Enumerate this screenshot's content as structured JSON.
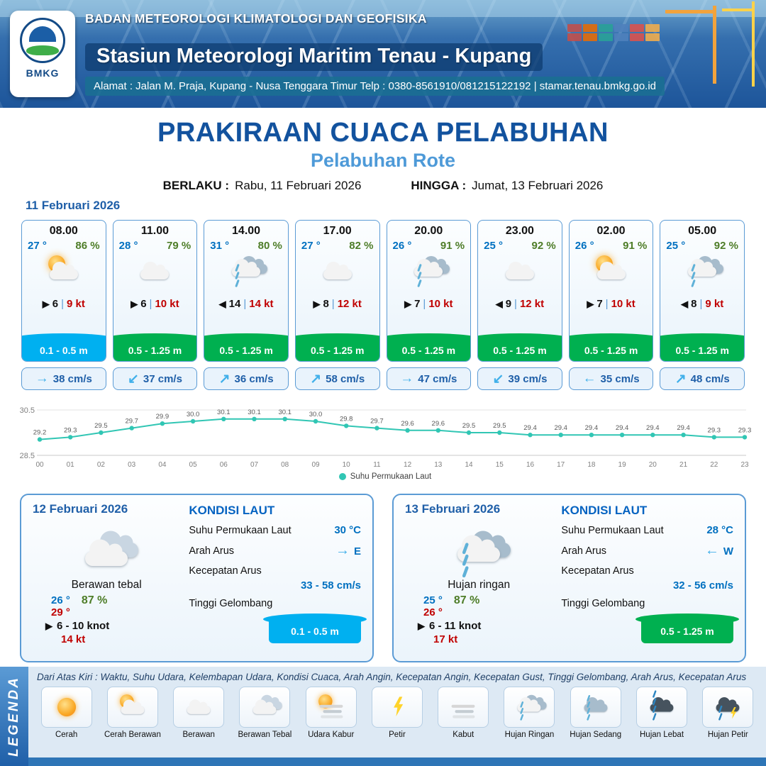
{
  "header": {
    "logo_text": "BMKG",
    "agency": "BADAN METEOROLOGI KLIMATOLOGI DAN GEOFISIKA",
    "station": "Stasiun Meteorologi Maritim Tenau - Kupang",
    "address": "Alamat : Jalan M. Praja, Kupang - Nusa Tenggara Timur Telp : 0380-8561910/081215122192  | stamar.tenau.bmkg.go.id"
  },
  "title": {
    "main": "PRAKIRAAN CUACA PELABUHAN",
    "subtitle": "Pelabuhan Rote",
    "berlaku_label": "BERLAKU :",
    "berlaku_value": "Rabu, 11 Februari 2026",
    "hingga_label": "HINGGA :",
    "hingga_value": "Jumat, 13 Februari 2026"
  },
  "ui": {
    "pipe": "|"
  },
  "day1": {
    "date": "11 Februari 2026",
    "hours": [
      {
        "time": "08.00",
        "temp": "27 °",
        "rh": "86 %",
        "icon": "cerah-berawan",
        "wind_arrow": "▶",
        "wind": "6",
        "gust": "9 kt",
        "wave": "0.1 - 0.5 m",
        "wave_type": "low",
        "current_arrow": "→",
        "current": "38 cm/s"
      },
      {
        "time": "11.00",
        "temp": "28 °",
        "rh": "79 %",
        "icon": "berawan",
        "wind_arrow": "▶",
        "wind": "6",
        "gust": "10 kt",
        "wave": "0.5 - 1.25 m",
        "wave_type": "mid",
        "current_arrow": "↙",
        "current": "37 cm/s"
      },
      {
        "time": "14.00",
        "temp": "31 °",
        "rh": "80 %",
        "icon": "hujan-ringan",
        "wind_arrow": "◀",
        "wind": "14",
        "gust": "14 kt",
        "wave": "0.5 - 1.25 m",
        "wave_type": "mid",
        "current_arrow": "↗",
        "current": "36 cm/s"
      },
      {
        "time": "17.00",
        "temp": "27 °",
        "rh": "82 %",
        "icon": "berawan",
        "wind_arrow": "▶",
        "wind": "8",
        "gust": "12 kt",
        "wave": "0.5 - 1.25 m",
        "wave_type": "mid",
        "current_arrow": "↗",
        "current": "58 cm/s"
      },
      {
        "time": "20.00",
        "temp": "26 °",
        "rh": "91 %",
        "icon": "hujan-ringan",
        "wind_arrow": "▶",
        "wind": "7",
        "gust": "10 kt",
        "wave": "0.5 - 1.25 m",
        "wave_type": "mid",
        "current_arrow": "→",
        "current": "47 cm/s"
      },
      {
        "time": "23.00",
        "temp": "25 °",
        "rh": "92 %",
        "icon": "berawan",
        "wind_arrow": "◀",
        "wind": "9",
        "gust": "12 kt",
        "wave": "0.5 - 1.25 m",
        "wave_type": "mid",
        "current_arrow": "↙",
        "current": "39 cm/s"
      },
      {
        "time": "02.00",
        "temp": "26 °",
        "rh": "91 %",
        "icon": "cerah-berawan",
        "wind_arrow": "▶",
        "wind": "7",
        "gust": "10 kt",
        "wave": "0.5 - 1.25 m",
        "wave_type": "mid",
        "current_arrow": "←",
        "current": "35 cm/s"
      },
      {
        "time": "05.00",
        "temp": "25 °",
        "rh": "92 %",
        "icon": "hujan-ringan",
        "wind_arrow": "◀",
        "wind": "8",
        "gust": "9 kt",
        "wave": "0.5 - 1.25 m",
        "wave_type": "mid",
        "current_arrow": "↗",
        "current": "48 cm/s"
      }
    ]
  },
  "chart_data": {
    "type": "line",
    "title": "",
    "series_name": "Suhu Permukaan Laut",
    "x": [
      "00",
      "01",
      "02",
      "03",
      "04",
      "05",
      "06",
      "07",
      "08",
      "09",
      "10",
      "11",
      "12",
      "13",
      "14",
      "15",
      "16",
      "17",
      "18",
      "19",
      "20",
      "21",
      "22",
      "23"
    ],
    "values": [
      29.2,
      29.3,
      29.5,
      29.7,
      29.9,
      30.0,
      30.1,
      30.1,
      30.1,
      30.0,
      29.8,
      29.7,
      29.6,
      29.6,
      29.5,
      29.5,
      29.4,
      29.4,
      29.4,
      29.4,
      29.4,
      29.4,
      29.3,
      29.3
    ],
    "ylim": [
      28.5,
      30.5
    ],
    "yticks": [
      "30.5",
      "28.5"
    ],
    "line_color": "#31c6b4",
    "legend_position": "bottom",
    "grid": false
  },
  "day2": {
    "date": "12 Februari 2026",
    "icon": "berawan-tebal",
    "condition": "Berawan tebal",
    "temp_min": "26 °",
    "temp_max": "29 °",
    "rh": "87 %",
    "wind_arrow": "▶",
    "wind_range": "6  - 10 knot",
    "gust": "14 kt",
    "sea": {
      "title": "KONDISI LAUT",
      "sst_label": "Suhu Permukaan Laut",
      "sst": "30 °C",
      "arus_label": "Arah Arus",
      "arus_arrow": "→",
      "arus_dir": "E",
      "kec_label": "Kecepatan Arus",
      "kec": "33 - 58 cm/s",
      "gel_label": "Tinggi Gelombang",
      "gel": "0.1 - 0.5 m",
      "gel_type": "low"
    }
  },
  "day3": {
    "date": "13 Februari 2026",
    "icon": "hujan-ringan",
    "condition": "Hujan ringan",
    "temp_min": "25 °",
    "temp_max": "26 °",
    "rh": "87 %",
    "wind_arrow": "▶",
    "wind_range": "6  - 11 knot",
    "gust": "17 kt",
    "sea": {
      "title": "KONDISI LAUT",
      "sst_label": "Suhu Permukaan Laut",
      "sst": "28 °C",
      "arus_label": "Arah Arus",
      "arus_arrow": "←",
      "arus_dir": "W",
      "kec_label": "Kecepatan Arus",
      "kec": "32 - 56 cm/s",
      "gel_label": "Tinggi Gelombang",
      "gel": "0.5 - 1.25 m",
      "gel_type": "mid"
    }
  },
  "legend": {
    "title": "LEGENDA",
    "note": "Dari Atas Kiri : Waktu, Suhu Udara, Kelembapan Udara, Kondisi Cuaca, Arah Angin, Kecepatan Angin, Kecepatan Gust, Tinggi Gelombang, Arah Arus, Kecepatan Arus",
    "items": [
      {
        "icon": "cerah",
        "label": "Cerah"
      },
      {
        "icon": "cerah-berawan",
        "label": "Cerah Berawan"
      },
      {
        "icon": "berawan",
        "label": "Berawan"
      },
      {
        "icon": "berawan-tebal",
        "label": "Berawan Tebal"
      },
      {
        "icon": "udara-kabur",
        "label": "Udara Kabur"
      },
      {
        "icon": "petir",
        "label": "Petir"
      },
      {
        "icon": "kabut",
        "label": "Kabut"
      },
      {
        "icon": "hujan-ringan",
        "label": "Hujan Ringan"
      },
      {
        "icon": "hujan-sedang",
        "label": "Hujan Sedang"
      },
      {
        "icon": "hujan-lebat",
        "label": "Hujan Lebat"
      },
      {
        "icon": "hujan-petir",
        "label": "Hujan Petir"
      }
    ]
  },
  "colors": {
    "temp_blue": "#0070c0",
    "rh_green": "#4e7d28",
    "gust_red": "#c00000",
    "wave_low": "#00b0f0",
    "wave_mid": "#00b050",
    "title_blue": "#12529e",
    "subtitle_blue": "#4e9ad8"
  }
}
